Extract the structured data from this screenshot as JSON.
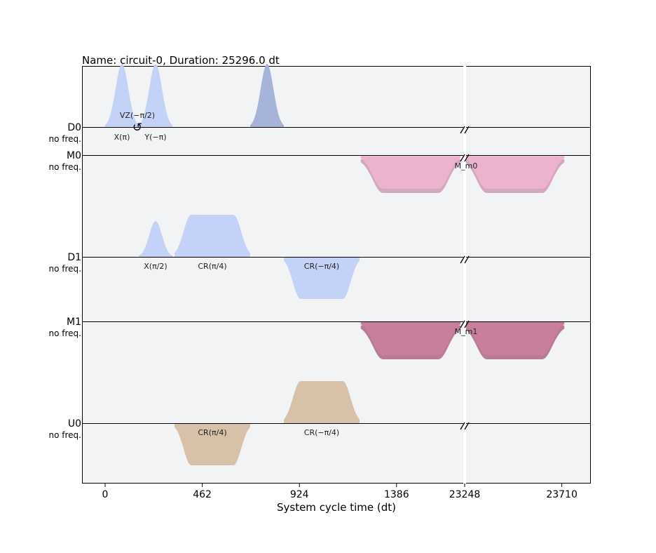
{
  "chart_data": {
    "type": "area",
    "title": "Name: circuit-0, Duration: 25296.0 dt",
    "xlabel": "System cycle time (dt)",
    "ylabel": "",
    "x_ticks": [
      "0",
      "462",
      "924",
      "1386",
      "23248",
      "23710"
    ],
    "x_tick_values": [
      0,
      462,
      924,
      1386,
      23248,
      23710
    ],
    "axis_break": {
      "from": 1690,
      "to": 23248
    },
    "channels": [
      {
        "name": "D0",
        "freq_label": "no freq."
      },
      {
        "name": "M0",
        "freq_label": "no freq."
      },
      {
        "name": "D1",
        "freq_label": "no freq."
      },
      {
        "name": "M1",
        "freq_label": "no freq."
      },
      {
        "name": "U0",
        "freq_label": "no freq."
      }
    ],
    "pulses": [
      {
        "channel": "D0",
        "label": "X(π)",
        "start": 0,
        "end": 160,
        "amp": 0.6,
        "shape": "gaussian",
        "color": "#c4d2f7"
      },
      {
        "channel": "D0",
        "label": "Y(−π)",
        "start": 160,
        "end": 320,
        "amp": 0.6,
        "shape": "gaussian",
        "color": "#c4d2f7"
      },
      {
        "channel": "D0",
        "label": "X(π)",
        "start": 690,
        "end": 850,
        "amp": 0.6,
        "shape": "gaussian",
        "color": "#a6b4da"
      },
      {
        "channel": "M0",
        "label": "M_m0",
        "start": 1216,
        "end": 1690,
        "amp": -0.32,
        "shape": "flat",
        "color": "#ecb3cf"
      },
      {
        "channel": "M0",
        "label": "M_m0",
        "start": 23248,
        "end": 23722,
        "amp": -0.32,
        "shape": "flat",
        "color": "#ecb3cf"
      },
      {
        "channel": "D1",
        "label": "X(π/2)",
        "start": 160,
        "end": 320,
        "amp": 0.34,
        "shape": "gaussian",
        "color": "#c4d2f7"
      },
      {
        "channel": "D1",
        "label": "CR(π/4)",
        "start": 330,
        "end": 690,
        "amp": 0.4,
        "shape": "flat",
        "color": "#c4d2f7"
      },
      {
        "channel": "D1",
        "label": "CR(−π/4)",
        "start": 850,
        "end": 1210,
        "amp": -0.4,
        "shape": "flat",
        "color": "#c4d2f7"
      },
      {
        "channel": "M1",
        "label": "M_m1",
        "start": 1216,
        "end": 1690,
        "amp": -0.32,
        "shape": "flat",
        "color": "#c77f9b"
      },
      {
        "channel": "M1",
        "label": "M_m1",
        "start": 23248,
        "end": 23722,
        "amp": -0.32,
        "shape": "flat",
        "color": "#c77f9b"
      },
      {
        "channel": "U0",
        "label": "CR(π/4)",
        "start": 330,
        "end": 690,
        "amp": -0.4,
        "shape": "flat",
        "color": "#d7c1a8"
      },
      {
        "channel": "U0",
        "label": "CR(−π/4)",
        "start": 850,
        "end": 1210,
        "amp": 0.4,
        "shape": "flat",
        "color": "#d7c1a8"
      }
    ],
    "frame_changes": [
      {
        "channel": "D0",
        "label": "VZ(−π/2)",
        "time": 160
      }
    ],
    "grid": false,
    "legend": "none"
  }
}
